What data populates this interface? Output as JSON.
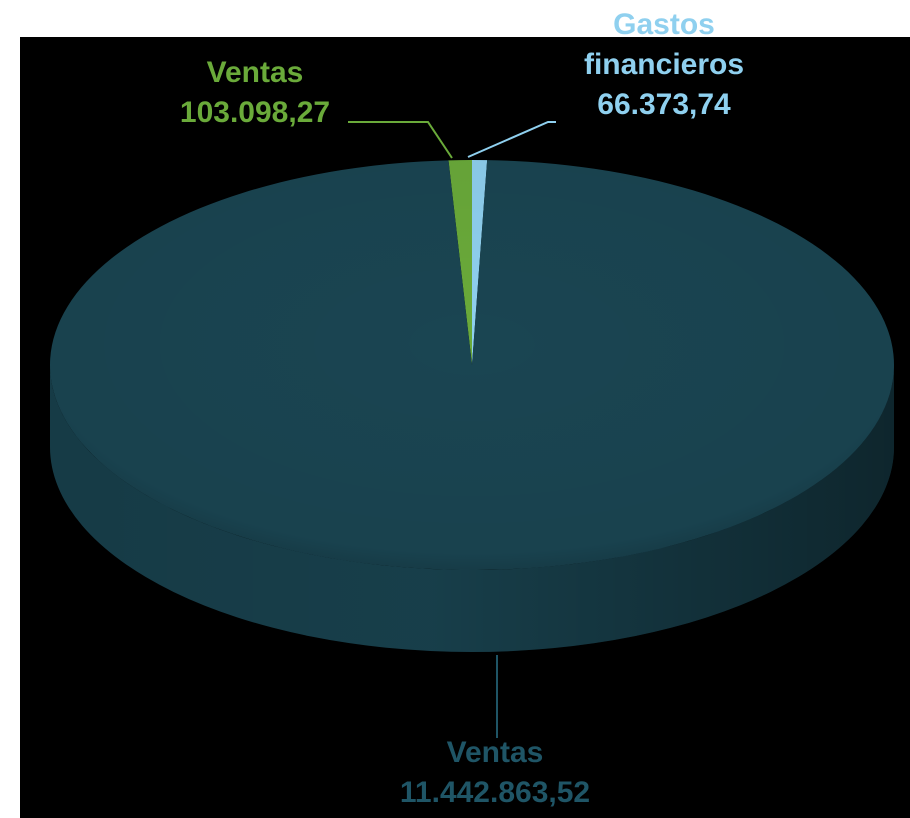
{
  "chart_data": {
    "type": "pie",
    "categories": [
      "Ventas",
      "Gastos financieros",
      "Ventas"
    ],
    "values": [
      103098.27,
      66373.74,
      11442863.52
    ],
    "value_labels": [
      "103.098,27",
      "66.373,74",
      "11.442.863,52"
    ],
    "colors": [
      "#6aaa3a",
      "#8fd0ef",
      "#1a4552"
    ],
    "label_colors": [
      "#6aaa3a",
      "#8fd0ef",
      "#1f5566"
    ]
  }
}
